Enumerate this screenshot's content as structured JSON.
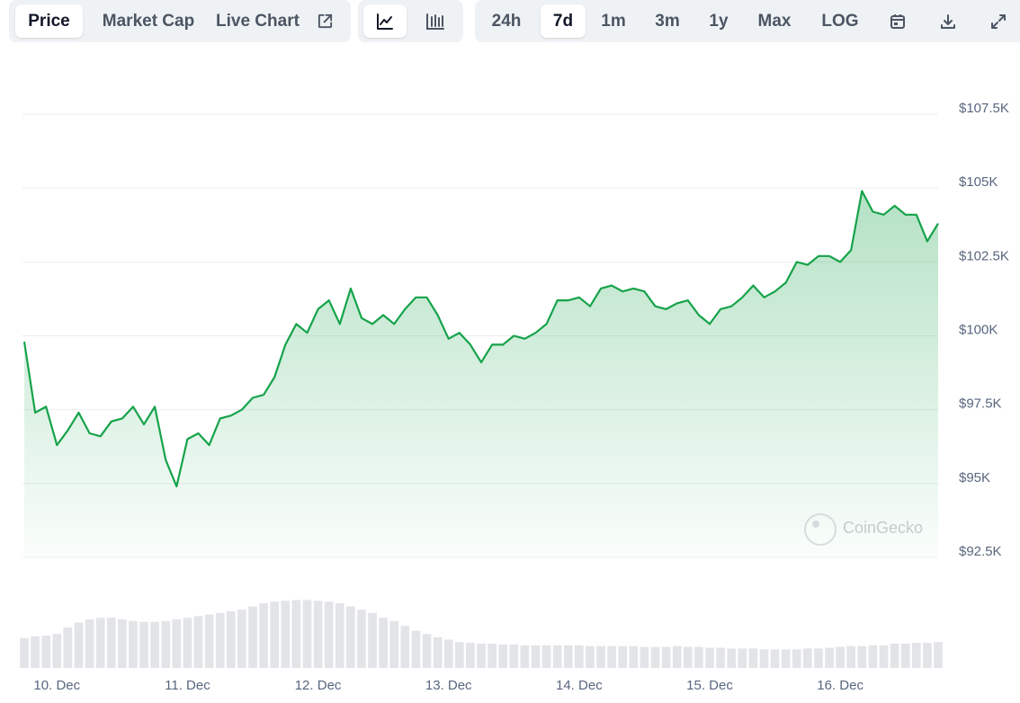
{
  "toolbar": {
    "metric_tabs": [
      "Price",
      "Market Cap",
      "Live Chart"
    ],
    "ranges": [
      "24h",
      "7d",
      "1m",
      "3m",
      "1y",
      "Max",
      "LOG"
    ]
  },
  "chart_data": {
    "type": "area",
    "color": "#16a34a",
    "watermark": "CoinGecko",
    "grid": true,
    "categories": [
      null,
      null,
      null,
      "10. Dec",
      null,
      null,
      null,
      null,
      null,
      null,
      null,
      null,
      null,
      null,
      null,
      "11. Dec",
      null,
      null,
      null,
      null,
      null,
      null,
      null,
      null,
      null,
      null,
      null,
      "12. Dec",
      null,
      null,
      null,
      null,
      null,
      null,
      null,
      null,
      null,
      null,
      null,
      "13. Dec",
      null,
      null,
      null,
      null,
      null,
      null,
      null,
      null,
      null,
      null,
      null,
      "14. Dec",
      null,
      null,
      null,
      null,
      null,
      null,
      null,
      null,
      null,
      null,
      null,
      "15. Dec",
      null,
      null,
      null,
      null,
      null,
      null,
      null,
      null,
      null,
      null,
      null,
      "16. Dec",
      null,
      null,
      null,
      null,
      null,
      null,
      null,
      null,
      null
    ],
    "values": [
      99800,
      97400,
      97600,
      96300,
      96800,
      97400,
      96700,
      96600,
      97100,
      97200,
      97600,
      97000,
      97600,
      95800,
      94900,
      96500,
      96700,
      96300,
      97200,
      97300,
      97500,
      97900,
      98000,
      98600,
      99700,
      100400,
      100100,
      100900,
      101200,
      100400,
      101600,
      100600,
      100400,
      100700,
      100400,
      100900,
      101300,
      101300,
      100700,
      99900,
      100100,
      99700,
      99100,
      99700,
      99700,
      100000,
      99900,
      100100,
      100400,
      101200,
      101200,
      101300,
      101000,
      101600,
      101700,
      101500,
      101600,
      101500,
      101000,
      100900,
      101100,
      101200,
      100700,
      100400,
      100900,
      101000,
      101300,
      101700,
      101300,
      101500,
      101800,
      102500,
      102400,
      102700,
      102700,
      102500,
      102900,
      104900,
      104200,
      104100,
      104400,
      104100,
      104100,
      103200,
      103800
    ],
    "ylim": [
      92500,
      108700
    ],
    "yticks": [
      {
        "value": 92500,
        "label": "$92.5K"
      },
      {
        "value": 95000,
        "label": "$95K"
      },
      {
        "value": 97500,
        "label": "$97.5K"
      },
      {
        "value": 100000,
        "label": "$100K"
      },
      {
        "value": 102500,
        "label": "$102.5K"
      },
      {
        "value": 105000,
        "label": "$105K"
      },
      {
        "value": 107500,
        "label": "$107.5K"
      }
    ],
    "volume": {
      "color": "#e2e4e8",
      "ylim": [
        0,
        100
      ],
      "values": [
        37,
        39,
        40,
        42,
        50,
        56,
        60,
        62,
        62,
        60,
        58,
        57,
        57,
        58,
        60,
        62,
        64,
        66,
        68,
        70,
        72,
        76,
        80,
        82,
        83,
        84,
        84,
        83,
        82,
        80,
        76,
        72,
        68,
        62,
        58,
        52,
        46,
        42,
        38,
        35,
        32,
        31,
        30,
        30,
        29,
        29,
        28,
        28,
        28,
        28,
        28,
        28,
        27,
        27,
        27,
        27,
        27,
        26,
        26,
        26,
        27,
        26,
        26,
        25,
        25,
        24,
        24,
        24,
        23,
        23,
        23,
        23,
        24,
        24,
        25,
        26,
        27,
        27,
        28,
        28,
        30,
        30,
        31,
        31,
        32
      ]
    }
  }
}
